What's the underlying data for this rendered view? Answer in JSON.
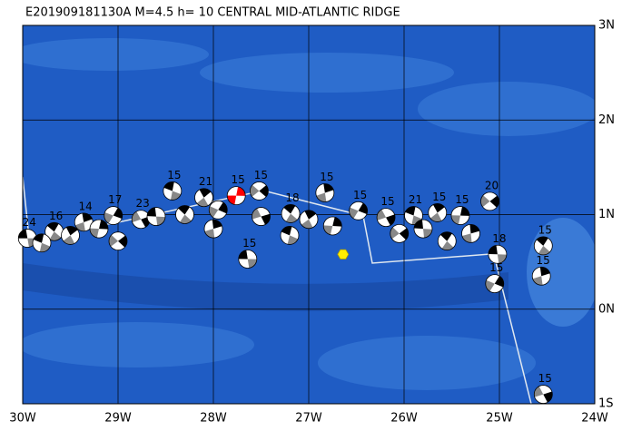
{
  "title": "E201909181130A M=4.5 h= 10 CENTRAL MID-ATLANTIC RIDGE",
  "map": {
    "lon_range": [
      -30,
      -24
    ],
    "lat_range": [
      -1,
      3
    ],
    "lon_ticks": [
      {
        "value": -30,
        "label": "30W"
      },
      {
        "value": -29,
        "label": "29W"
      },
      {
        "value": -28,
        "label": "28W"
      },
      {
        "value": -27,
        "label": "27W"
      },
      {
        "value": -26,
        "label": "26W"
      },
      {
        "value": -25,
        "label": "25W"
      },
      {
        "value": -24,
        "label": "24W"
      }
    ],
    "lat_ticks": [
      {
        "value": 3,
        "label": "3N"
      },
      {
        "value": 2,
        "label": "2N"
      },
      {
        "value": 1,
        "label": "1N"
      },
      {
        "value": 0,
        "label": "0N"
      },
      {
        "value": -1,
        "label": "1S"
      }
    ]
  },
  "epicenter": {
    "lon": -26.64,
    "lat": 0.58,
    "color": "#ffee00"
  },
  "events": [
    {
      "lon": -29.95,
      "lat": 0.75,
      "label": "24"
    },
    {
      "lon": -29.67,
      "lat": 0.82,
      "label": "16"
    },
    {
      "lon": -29.36,
      "lat": 0.92,
      "label": "14"
    },
    {
      "lon": -29.05,
      "lat": 0.99,
      "label": "17"
    },
    {
      "lon": -28.76,
      "lat": 0.95,
      "label": "23"
    },
    {
      "lon": -28.43,
      "lat": 1.25,
      "label": "15"
    },
    {
      "lon": -28.1,
      "lat": 1.18,
      "label": "21"
    },
    {
      "lon": -27.76,
      "lat": 1.2,
      "label": "15",
      "color": "#ff0000"
    },
    {
      "lon": -27.52,
      "lat": 1.25,
      "label": "15"
    },
    {
      "lon": -27.64,
      "lat": 0.53,
      "label": "15"
    },
    {
      "lon": -27.19,
      "lat": 1.01,
      "label": "18"
    },
    {
      "lon": -26.83,
      "lat": 1.23,
      "label": "15"
    },
    {
      "lon": -26.48,
      "lat": 1.04,
      "label": "15"
    },
    {
      "lon": -26.19,
      "lat": 0.97,
      "label": "15"
    },
    {
      "lon": -25.9,
      "lat": 0.99,
      "label": "21"
    },
    {
      "lon": -25.65,
      "lat": 1.02,
      "label": "15"
    },
    {
      "lon": -25.41,
      "lat": 0.99,
      "label": "15"
    },
    {
      "lon": -25.1,
      "lat": 1.14,
      "label": "20"
    },
    {
      "lon": -25.02,
      "lat": 0.58,
      "label": "18"
    },
    {
      "lon": -24.54,
      "lat": 0.67,
      "label": "15"
    },
    {
      "lon": -24.56,
      "lat": 0.35,
      "label": "15"
    },
    {
      "lon": -25.05,
      "lat": 0.27,
      "label": "15"
    },
    {
      "lon": -24.54,
      "lat": -0.9,
      "label": "15"
    },
    {
      "lon": -29.8,
      "lat": 0.7
    },
    {
      "lon": -29.5,
      "lat": 0.78
    },
    {
      "lon": -29.2,
      "lat": 0.85
    },
    {
      "lon": -29.0,
      "lat": 0.72
    },
    {
      "lon": -28.6,
      "lat": 0.98
    },
    {
      "lon": -28.3,
      "lat": 1.0
    },
    {
      "lon": -28.0,
      "lat": 0.85
    },
    {
      "lon": -27.95,
      "lat": 1.05
    },
    {
      "lon": -27.5,
      "lat": 0.98
    },
    {
      "lon": -27.2,
      "lat": 0.78
    },
    {
      "lon": -27.0,
      "lat": 0.95
    },
    {
      "lon": -26.75,
      "lat": 0.88
    },
    {
      "lon": -26.05,
      "lat": 0.8
    },
    {
      "lon": -25.8,
      "lat": 0.85
    },
    {
      "lon": -25.55,
      "lat": 0.72
    },
    {
      "lon": -25.3,
      "lat": 0.8
    }
  ]
}
